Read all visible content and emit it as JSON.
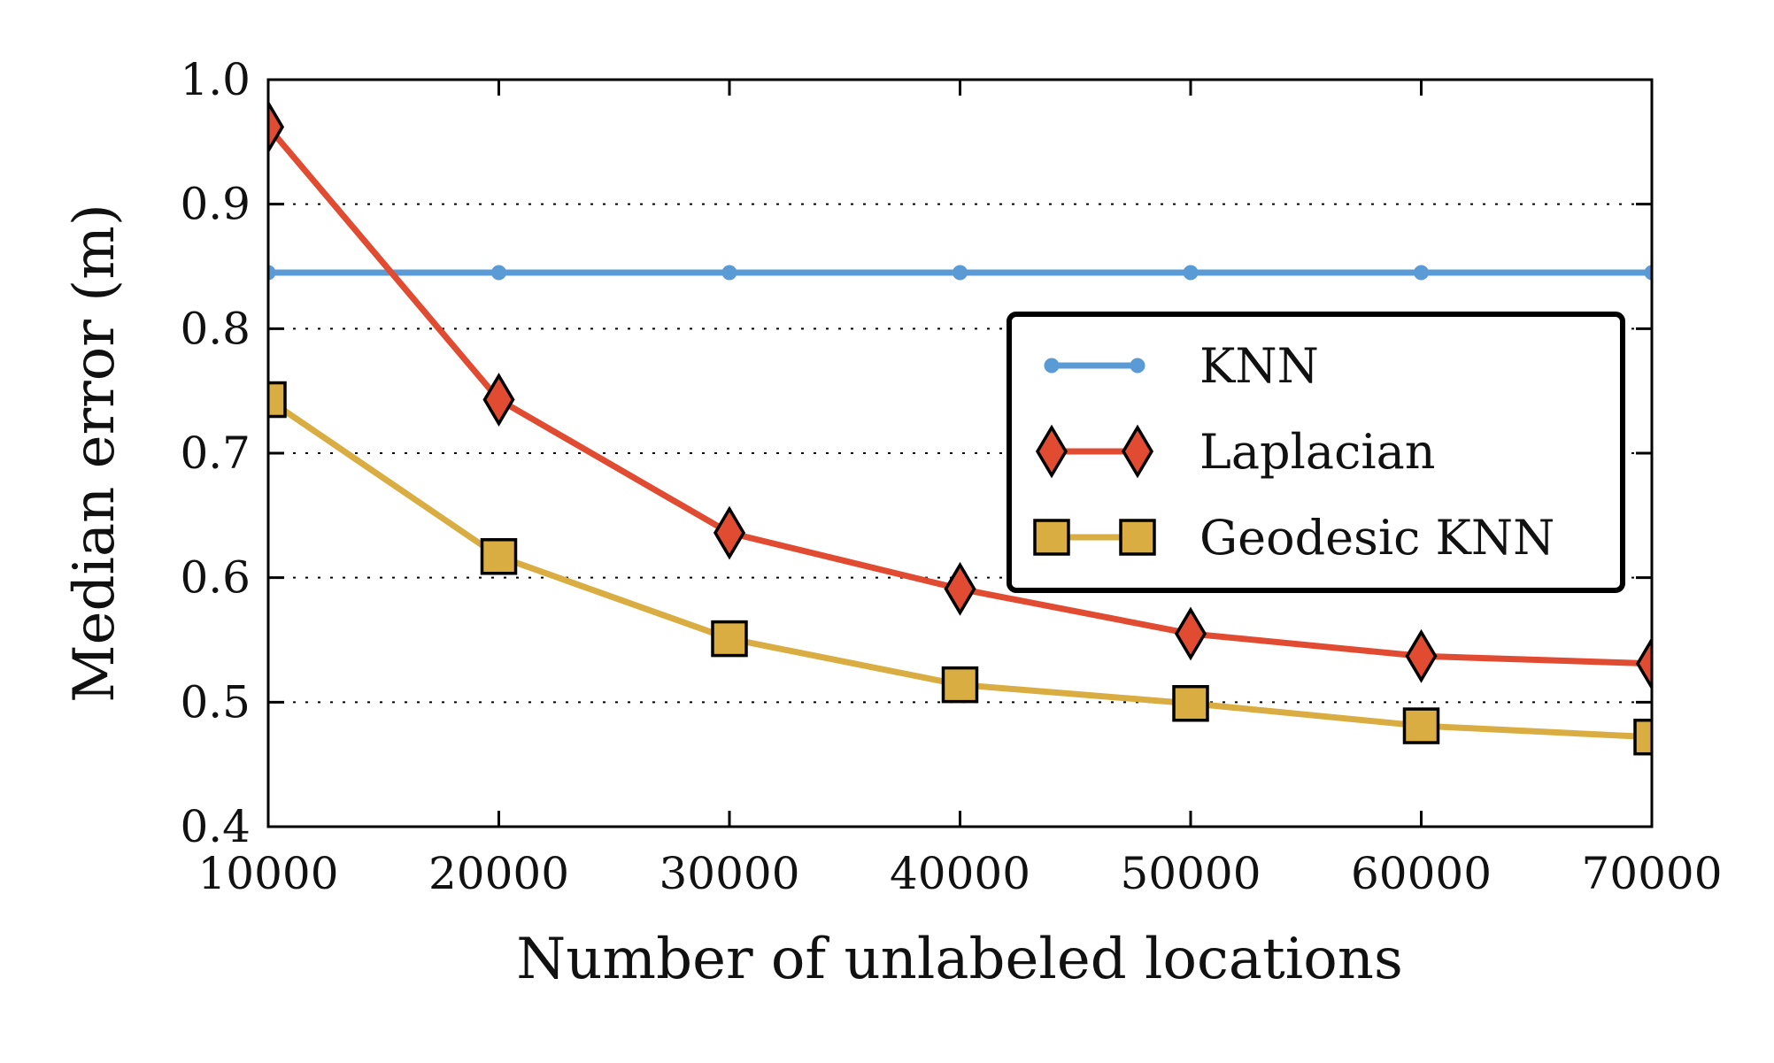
{
  "chart_data": {
    "type": "line",
    "title": "",
    "xlabel": "Number of unlabeled locations",
    "ylabel": "Median error (m)",
    "x": [
      10000,
      20000,
      30000,
      40000,
      50000,
      60000,
      70000
    ],
    "xticks": [
      "10000",
      "20000",
      "30000",
      "40000",
      "50000",
      "60000",
      "70000"
    ],
    "yticks": [
      "0.4",
      "0.5",
      "0.6",
      "0.7",
      "0.8",
      "0.9",
      "1.0"
    ],
    "xlim": [
      10000,
      70000
    ],
    "ylim": [
      0.4,
      1.0
    ],
    "grid": "horizontal dotted",
    "legend_position": "right",
    "series": [
      {
        "name": "KNN",
        "color": "#5b9bd5",
        "marker": "circle",
        "values": [
          0.845,
          0.845,
          0.845,
          0.845,
          0.845,
          0.845,
          0.845
        ]
      },
      {
        "name": "Laplacian",
        "color": "#e04b32",
        "marker": "diamond",
        "values": [
          0.962,
          0.743,
          0.636,
          0.591,
          0.555,
          0.537,
          0.531
        ]
      },
      {
        "name": "Geodesic KNN",
        "color": "#d9ad41",
        "marker": "square",
        "values": [
          0.743,
          0.617,
          0.551,
          0.514,
          0.499,
          0.481,
          0.472
        ]
      }
    ]
  }
}
